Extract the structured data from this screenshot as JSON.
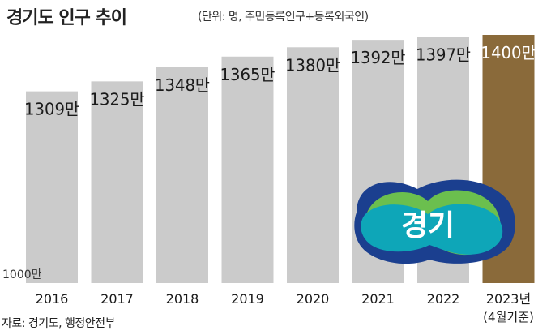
{
  "chart_data": {
    "type": "bar",
    "title": "경기도 인구 추이",
    "subtitle": "(단위: 명, 주민등록인구+등록외국인)",
    "categories": [
      "2016",
      "2017",
      "2018",
      "2019",
      "2020",
      "2021",
      "2022",
      "2023년"
    ],
    "category_notes": [
      "",
      "",
      "",
      "",
      "",
      "",
      "",
      "(4월기준)"
    ],
    "values": [
      1309,
      1325,
      1348,
      1365,
      1380,
      1392,
      1397,
      1400
    ],
    "value_labels": [
      "1309만",
      "1325만",
      "1348만",
      "1365만",
      "1380만",
      "1392만",
      "1397만",
      "1400만"
    ],
    "ylim": [
      1000,
      1400
    ],
    "baseline_label": "1000만",
    "xlabel": "",
    "ylabel": "",
    "grid": false,
    "bar_color": "#cbcbcb",
    "highlight_color": "#8a6a3a",
    "highlight_index": 7
  },
  "logo": {
    "text": "경기"
  },
  "source": "자료: 경기도, 행정안전부"
}
